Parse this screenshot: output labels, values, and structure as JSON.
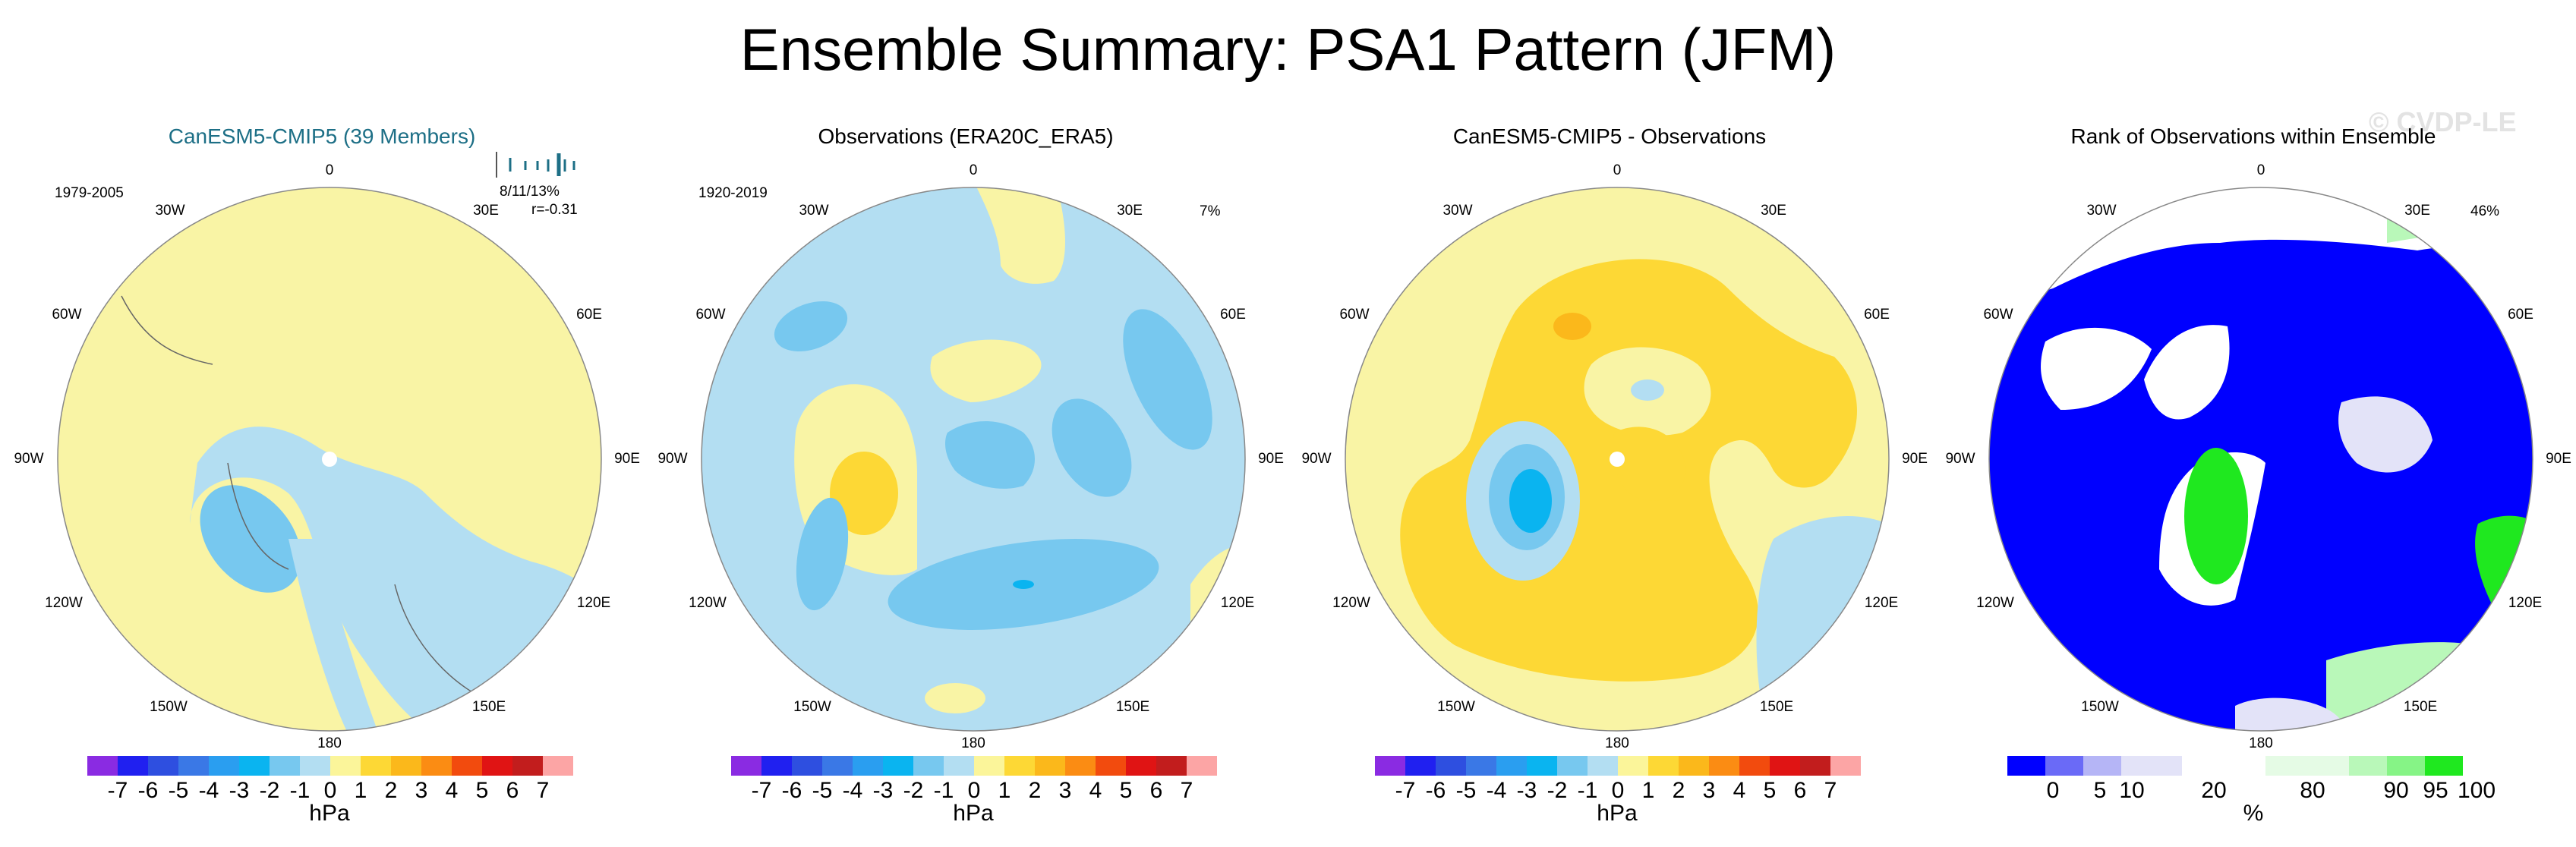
{
  "title": "Ensemble Summary: PSA1 Pattern (JFM)",
  "watermark": "© CVDP-LE",
  "lon_labels": [
    "0",
    "30E",
    "60E",
    "90E",
    "120E",
    "150E",
    "180",
    "150W",
    "120W",
    "90W",
    "60W",
    "30W"
  ],
  "panels": [
    {
      "title": "CanESM5-CMIP5 (39 Members)",
      "title_color": "#1d6f86",
      "period": "1979-2005",
      "stat": "8/11/13%",
      "corr": "r=-0.31",
      "colorbar": {
        "ticks": [
          "-7",
          "-6",
          "-5",
          "-4",
          "-3",
          "-2",
          "-1",
          "0",
          "1",
          "2",
          "3",
          "4",
          "5",
          "6",
          "7"
        ],
        "unit": "hPa",
        "colors": [
          "#8a2be2",
          "#2020f0",
          "#2e4fe0",
          "#3a78e6",
          "#2a9ef0",
          "#0ab4f0",
          "#77c8ef",
          "#b3def2",
          "#fbf59a",
          "#fdd835",
          "#fbb81b",
          "#fb8c13",
          "#f24b0e",
          "#e01414",
          "#c21d1d",
          "#fca5a5"
        ]
      }
    },
    {
      "title": "Observations (ERA20C_ERA5)",
      "period": "1920-2019",
      "pct": "7%",
      "colorbar": {
        "ticks": [
          "-7",
          "-6",
          "-5",
          "-4",
          "-3",
          "-2",
          "-1",
          "0",
          "1",
          "2",
          "3",
          "4",
          "5",
          "6",
          "7"
        ],
        "unit": "hPa"
      }
    },
    {
      "title": "CanESM5-CMIP5 - Observations",
      "colorbar": {
        "ticks": [
          "-7",
          "-6",
          "-5",
          "-4",
          "-3",
          "-2",
          "-1",
          "0",
          "1",
          "2",
          "3",
          "4",
          "5",
          "6",
          "7"
        ],
        "unit": "hPa"
      }
    },
    {
      "title": "Rank of Observations within Ensemble",
      "pct": "46%",
      "colorbar": {
        "ticks": [
          "0",
          "5",
          "10",
          "20",
          "80",
          "90",
          "95",
          "100"
        ],
        "unit": "%",
        "colors": [
          "#0000ff",
          "#6a6af7",
          "#b5b5f6",
          "#e3e3f8",
          "#ffffff",
          "#e5fbe5",
          "#b9f8b9",
          "#86f486",
          "#1fe81f"
        ]
      }
    }
  ]
}
